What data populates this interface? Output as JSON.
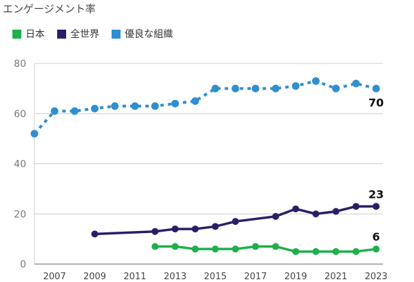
{
  "chart_data": {
    "type": "line",
    "title": "エンゲージメント率",
    "x": [
      2006,
      2007,
      2008,
      2009,
      2010,
      2011,
      2012,
      2013,
      2014,
      2015,
      2016,
      2017,
      2018,
      2019,
      2020,
      2021,
      2022,
      2023
    ],
    "x_tick_labels": [
      "2007",
      "2009",
      "2011",
      "2013",
      "2015",
      "2017",
      "2019",
      "2021",
      "2023"
    ],
    "y_tick_labels": [
      "0",
      "20",
      "40",
      "60",
      "80"
    ],
    "ylim": [
      0,
      80
    ],
    "xlim": [
      2006,
      2023
    ],
    "grid": true,
    "legend_position": "top-left",
    "series": [
      {
        "name": "日本",
        "color": "#1db04b",
        "style": "solid",
        "values": [
          null,
          null,
          null,
          null,
          null,
          null,
          7,
          7,
          6,
          6,
          6,
          7,
          7,
          5,
          5,
          5,
          5,
          6
        ],
        "end_label": "6"
      },
      {
        "name": "全世界",
        "color": "#2a1f66",
        "style": "solid",
        "values": [
          null,
          null,
          null,
          12,
          null,
          null,
          13,
          14,
          14,
          15,
          17,
          null,
          19,
          22,
          20,
          21,
          23,
          23
        ],
        "end_label": "23"
      },
      {
        "name": "優良な組織",
        "color": "#2f8fd0",
        "style": "dotted",
        "values": [
          52,
          61,
          61,
          62,
          63,
          63,
          63,
          64,
          65,
          70,
          70,
          70,
          70,
          71,
          73,
          70,
          72,
          70
        ],
        "end_label": "70"
      }
    ]
  }
}
